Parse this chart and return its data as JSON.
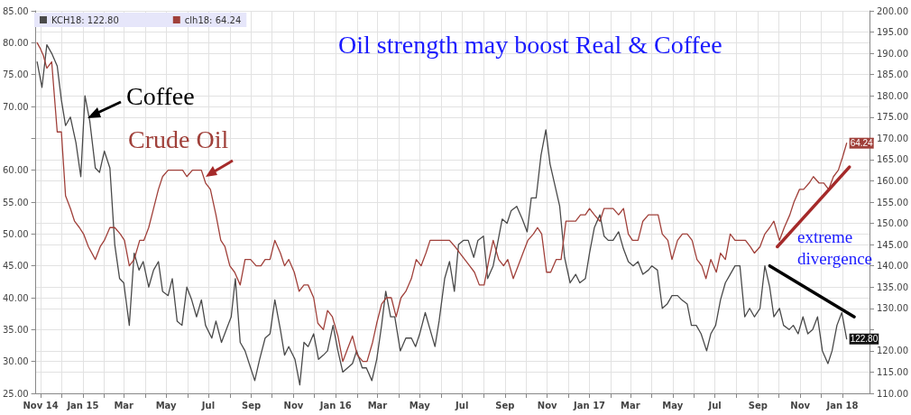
{
  "chart_data": {
    "type": "line",
    "title": "Oil strength may boost Real & Coffee",
    "annotations": [
      "Coffee",
      "Crude Oil",
      "extreme divergence"
    ],
    "xlim": [
      "2014-10-25",
      "2018-02-09"
    ],
    "xticks": [
      {
        "value": "2014-11-01",
        "label": "Nov 14"
      },
      {
        "value": "2014-12-01",
        "label": null
      },
      {
        "value": "2015-01-01",
        "label": "Jan 15"
      },
      {
        "value": "2015-02-01",
        "label": null
      },
      {
        "value": "2015-03-01",
        "label": "Mar"
      },
      {
        "value": "2015-04-01",
        "label": null
      },
      {
        "value": "2015-05-01",
        "label": "May"
      },
      {
        "value": "2015-06-01",
        "label": null
      },
      {
        "value": "2015-07-01",
        "label": "Jul"
      },
      {
        "value": "2015-08-01",
        "label": null
      },
      {
        "value": "2015-09-01",
        "label": "Sep"
      },
      {
        "value": "2015-10-01",
        "label": null
      },
      {
        "value": "2015-11-01",
        "label": "Nov"
      },
      {
        "value": "2015-12-01",
        "label": null
      },
      {
        "value": "2016-01-01",
        "label": "Jan 16"
      },
      {
        "value": "2016-02-01",
        "label": null
      },
      {
        "value": "2016-03-01",
        "label": "Mar"
      },
      {
        "value": "2016-04-01",
        "label": null
      },
      {
        "value": "2016-05-01",
        "label": "May"
      },
      {
        "value": "2016-06-01",
        "label": null
      },
      {
        "value": "2016-07-01",
        "label": "Jul"
      },
      {
        "value": "2016-08-01",
        "label": null
      },
      {
        "value": "2016-09-01",
        "label": "Sep"
      },
      {
        "value": "2016-10-01",
        "label": null
      },
      {
        "value": "2016-11-01",
        "label": "Nov"
      },
      {
        "value": "2016-12-01",
        "label": null
      },
      {
        "value": "2017-01-01",
        "label": "Jan 17"
      },
      {
        "value": "2017-02-01",
        "label": null
      },
      {
        "value": "2017-03-01",
        "label": "Mar"
      },
      {
        "value": "2017-04-01",
        "label": null
      },
      {
        "value": "2017-05-01",
        "label": "May"
      },
      {
        "value": "2017-06-01",
        "label": null
      },
      {
        "value": "2017-07-01",
        "label": "Jul"
      },
      {
        "value": "2017-08-01",
        "label": null
      },
      {
        "value": "2017-09-01",
        "label": "Sep"
      },
      {
        "value": "2017-10-01",
        "label": null
      },
      {
        "value": "2017-11-01",
        "label": "Nov"
      },
      {
        "value": "2017-12-01",
        "label": null
      },
      {
        "value": "2018-01-01",
        "label": "Jan 18"
      }
    ],
    "ylim": [
      25,
      85
    ],
    "yticks": [
      {
        "value": 25,
        "label": "25.00"
      },
      {
        "value": 30,
        "label": "30.00"
      },
      {
        "value": 35,
        "label": "35.00"
      },
      {
        "value": 40,
        "label": "40.00"
      },
      {
        "value": 45,
        "label": "45.00"
      },
      {
        "value": 50,
        "label": "50.00"
      },
      {
        "value": 55,
        "label": "55.00"
      },
      {
        "value": 60,
        "label": "60.00"
      },
      {
        "value": 65,
        "label": null
      },
      {
        "value": 70,
        "label": "70.00"
      },
      {
        "value": 75,
        "label": "75.00"
      },
      {
        "value": 80,
        "label": "80.00"
      },
      {
        "value": 85,
        "label": "85.00"
      }
    ],
    "y2lim": [
      110,
      200
    ],
    "y2ticks": [
      {
        "value": 110,
        "label": "110.00"
      },
      {
        "value": 115,
        "label": "115.00"
      },
      {
        "value": 120,
        "label": "120.00"
      },
      {
        "value": 125,
        "label": null
      },
      {
        "value": 130,
        "label": "130.00"
      },
      {
        "value": 135,
        "label": "135.00"
      },
      {
        "value": 140,
        "label": "140.00"
      },
      {
        "value": 145,
        "label": "145.00"
      },
      {
        "value": 150,
        "label": "150.00"
      },
      {
        "value": 155,
        "label": "155.00"
      },
      {
        "value": 160,
        "label": "160.00"
      },
      {
        "value": 165,
        "label": "165.00"
      },
      {
        "value": 170,
        "label": "170.00"
      },
      {
        "value": 175,
        "label": "175.00"
      },
      {
        "value": 180,
        "label": "180.00"
      },
      {
        "value": 185,
        "label": "185.00"
      },
      {
        "value": 190,
        "label": "190.00"
      },
      {
        "value": 195,
        "label": "195.00"
      },
      {
        "value": 200,
        "label": "200.00"
      }
    ],
    "grid": true,
    "legend": "top left",
    "marker": "none",
    "line_style": "solid",
    "series": [
      {
        "name": "KCH18: 122.80",
        "color": "#4a4a4a",
        "axis": "y2",
        "x": [
          "2014-10-27",
          "2014-11-03",
          "2014-11-10",
          "2014-11-17",
          "2014-11-25",
          "2014-12-01",
          "2014-12-07",
          "2014-12-14",
          "2014-12-22",
          "2014-12-29",
          "2015-01-04",
          "2015-01-11",
          "2015-01-19",
          "2015-01-25",
          "2015-02-01",
          "2015-02-09",
          "2015-02-16",
          "2015-02-23",
          "2015-03-01",
          "2015-03-09",
          "2015-03-16",
          "2015-03-23",
          "2015-03-29",
          "2015-04-06",
          "2015-04-13",
          "2015-04-20",
          "2015-04-26",
          "2015-05-04",
          "2015-05-10",
          "2015-05-17",
          "2015-05-24",
          "2015-05-31",
          "2015-06-07",
          "2015-06-14",
          "2015-06-21",
          "2015-06-27",
          "2015-07-06",
          "2015-07-12",
          "2015-07-20",
          "2015-07-27",
          "2015-08-03",
          "2015-08-09",
          "2015-08-16",
          "2015-08-23",
          "2015-08-31",
          "2015-09-06",
          "2015-09-13",
          "2015-09-21",
          "2015-09-28",
          "2015-10-05",
          "2015-10-13",
          "2015-10-19",
          "2015-10-25",
          "2015-11-03",
          "2015-11-10",
          "2015-11-16",
          "2015-11-22",
          "2015-11-30",
          "2015-12-07",
          "2015-12-14",
          "2015-12-20",
          "2015-12-28",
          "2016-01-04",
          "2016-01-11",
          "2016-01-18",
          "2016-01-25",
          "2016-01-31",
          "2016-02-08",
          "2016-02-14",
          "2016-02-22",
          "2016-02-29",
          "2016-03-07",
          "2016-03-13",
          "2016-03-20",
          "2016-03-26",
          "2016-04-03",
          "2016-04-11",
          "2016-04-19",
          "2016-04-25",
          "2016-05-01",
          "2016-05-09",
          "2016-05-16",
          "2016-05-23",
          "2016-05-29",
          "2016-06-06",
          "2016-06-13",
          "2016-06-20",
          "2016-06-26",
          "2016-07-03",
          "2016-07-10",
          "2016-07-18",
          "2016-07-24",
          "2016-08-01",
          "2016-08-07",
          "2016-08-15",
          "2016-08-21",
          "2016-08-28",
          "2016-09-04",
          "2016-09-10",
          "2016-09-18",
          "2016-09-26",
          "2016-10-03",
          "2016-10-09",
          "2016-10-16",
          "2016-10-23",
          "2016-10-30",
          "2016-11-05",
          "2016-11-12",
          "2016-11-19",
          "2016-11-26",
          "2016-12-04",
          "2016-12-12",
          "2016-12-18",
          "2016-12-26",
          "2017-01-01",
          "2017-01-08",
          "2017-01-16",
          "2017-01-22",
          "2017-01-28",
          "2017-02-04",
          "2017-02-12",
          "2017-02-19",
          "2017-02-26",
          "2017-03-05",
          "2017-03-12",
          "2017-03-19",
          "2017-03-27",
          "2017-04-01",
          "2017-04-09",
          "2017-04-16",
          "2017-04-23",
          "2017-04-30",
          "2017-05-08",
          "2017-05-14",
          "2017-05-22",
          "2017-05-28",
          "2017-06-04",
          "2017-06-11",
          "2017-06-19",
          "2017-06-25",
          "2017-07-02",
          "2017-07-09",
          "2017-07-16",
          "2017-07-23",
          "2017-07-30",
          "2017-08-06",
          "2017-08-13",
          "2017-08-20",
          "2017-08-27",
          "2017-09-04",
          "2017-09-11",
          "2017-09-18",
          "2017-09-24",
          "2017-10-02",
          "2017-10-08",
          "2017-10-16",
          "2017-10-22",
          "2017-10-29",
          "2017-11-05",
          "2017-11-12",
          "2017-11-19",
          "2017-11-26",
          "2017-12-03",
          "2017-12-11",
          "2017-12-17",
          "2017-12-24",
          "2017-12-31",
          "2018-01-07"
        ],
        "values": [
          188,
          182,
          192,
          190,
          187,
          179,
          173,
          175,
          169,
          161,
          180,
          174,
          163,
          162,
          167,
          163,
          145,
          137,
          136,
          126,
          143,
          139,
          141,
          135,
          139,
          141,
          134,
          133,
          137,
          127,
          126,
          135,
          132,
          128,
          132,
          126,
          123,
          127,
          122,
          125,
          128,
          137,
          122,
          120,
          116,
          113,
          118,
          123,
          124,
          132,
          125,
          119,
          121,
          118,
          112,
          122,
          121,
          124,
          118,
          119,
          120,
          126,
          120,
          115,
          116,
          117,
          120,
          116,
          116,
          113,
          118,
          126,
          134,
          128,
          128,
          120,
          123,
          123,
          121,
          124,
          129,
          125,
          121,
          127,
          137,
          141,
          134,
          145,
          146,
          146,
          142,
          146,
          147,
          137,
          140,
          145,
          151,
          150,
          153,
          154,
          151,
          148,
          156,
          156,
          166,
          172,
          164,
          159,
          154,
          142,
          136,
          138,
          136,
          137,
          143,
          149,
          152,
          147,
          146,
          146,
          148,
          144,
          141,
          140,
          141,
          138,
          139,
          140,
          139,
          130,
          131,
          133,
          133,
          132,
          131,
          126,
          126,
          124,
          120,
          124,
          126,
          132,
          136,
          138,
          140,
          140,
          128,
          130,
          128,
          130,
          140,
          135,
          128,
          130,
          126,
          125,
          126,
          124,
          128,
          124,
          125,
          128,
          120,
          117,
          120,
          126,
          129,
          122.8
        ],
        "value_labels": [
          null,
          null,
          null,
          null,
          null,
          null,
          null,
          null,
          null,
          null,
          null,
          null,
          null,
          null,
          null,
          null,
          null,
          null,
          null,
          null,
          null,
          null,
          null,
          null,
          null,
          null,
          null,
          null,
          null,
          null,
          null,
          null,
          null,
          null,
          null,
          null,
          null,
          null,
          null,
          null,
          null,
          null,
          null,
          null,
          null,
          null,
          null,
          null,
          null,
          null,
          null,
          null,
          null,
          null,
          null,
          null,
          null,
          null,
          null,
          null,
          null,
          null,
          null,
          null,
          null,
          null,
          null,
          null,
          null,
          null,
          null,
          null,
          null,
          null,
          null,
          null,
          null,
          null,
          null,
          null,
          null,
          null,
          null,
          null,
          null,
          null,
          null,
          null,
          null,
          null,
          null,
          null,
          null,
          null,
          null,
          null,
          null,
          null,
          null,
          null,
          null,
          null,
          null,
          null,
          null,
          null,
          null,
          null,
          null,
          null,
          null,
          null,
          null,
          null,
          null,
          null,
          null,
          null,
          null,
          null,
          null,
          null,
          null,
          null,
          null,
          null,
          null,
          null,
          null,
          null,
          null,
          null,
          null,
          null,
          null,
          null,
          null,
          null,
          null,
          null,
          null,
          null,
          null,
          null,
          null,
          null,
          null,
          null,
          null,
          null,
          null,
          null,
          null,
          null,
          null,
          null,
          null,
          null,
          null,
          null,
          null,
          null,
          null,
          null,
          null,
          null,
          null,
          "122.80"
        ]
      },
      {
        "name": "clh18: 64.24",
        "color": "#a0403a",
        "axis": "y",
        "x": [
          "2014-10-27",
          "2014-11-01",
          "2014-11-05",
          "2014-11-10",
          "2014-11-17",
          "2014-11-25",
          "2014-12-01",
          "2014-12-07",
          "2014-12-14",
          "2014-12-20",
          "2014-12-27",
          "2015-01-02",
          "2015-01-09",
          "2015-01-19",
          "2015-01-26",
          "2015-02-01",
          "2015-02-09",
          "2015-02-16",
          "2015-02-24",
          "2015-03-02",
          "2015-03-09",
          "2015-03-16",
          "2015-03-24",
          "2015-03-30",
          "2015-04-06",
          "2015-04-13",
          "2015-04-20",
          "2015-04-26",
          "2015-05-04",
          "2015-05-10",
          "2015-05-17",
          "2015-05-25",
          "2015-05-31",
          "2015-06-08",
          "2015-06-14",
          "2015-06-21",
          "2015-06-27",
          "2015-07-04",
          "2015-07-12",
          "2015-07-19",
          "2015-07-25",
          "2015-08-01",
          "2015-08-08",
          "2015-08-16",
          "2015-08-23",
          "2015-08-31",
          "2015-09-08",
          "2015-09-15",
          "2015-09-21",
          "2015-09-28",
          "2015-10-05",
          "2015-10-13",
          "2015-10-19",
          "2015-10-25",
          "2015-11-02",
          "2015-11-09",
          "2015-11-16",
          "2015-11-22",
          "2015-11-30",
          "2015-12-06",
          "2015-12-14",
          "2015-12-20",
          "2015-12-27",
          "2016-01-04",
          "2016-01-11",
          "2016-01-18",
          "2016-01-25",
          "2016-02-01",
          "2016-02-09",
          "2016-02-15",
          "2016-02-23",
          "2016-02-29",
          "2016-03-07",
          "2016-03-14",
          "2016-03-21",
          "2016-03-28",
          "2016-04-04",
          "2016-04-11",
          "2016-04-19",
          "2016-04-26",
          "2016-05-03",
          "2016-05-10",
          "2016-05-16",
          "2016-05-24",
          "2016-05-31",
          "2016-06-07",
          "2016-06-13",
          "2016-06-21",
          "2016-06-28",
          "2016-07-05",
          "2016-07-12",
          "2016-07-19",
          "2016-07-26",
          "2016-08-02",
          "2016-08-09",
          "2016-08-15",
          "2016-08-23",
          "2016-08-30",
          "2016-09-05",
          "2016-09-13",
          "2016-09-20",
          "2016-09-27",
          "2016-10-04",
          "2016-10-12",
          "2016-10-18",
          "2016-10-24",
          "2016-10-31",
          "2016-11-06",
          "2016-11-14",
          "2016-11-21",
          "2016-11-28",
          "2016-12-05",
          "2016-12-12",
          "2016-12-19",
          "2016-12-26",
          "2017-01-01",
          "2017-01-08",
          "2017-01-16",
          "2017-01-22",
          "2017-01-28",
          "2017-02-04",
          "2017-02-12",
          "2017-02-19",
          "2017-02-26",
          "2017-03-04",
          "2017-03-12",
          "2017-03-19",
          "2017-03-27",
          "2017-04-03",
          "2017-04-10",
          "2017-04-16",
          "2017-04-24",
          "2017-04-30",
          "2017-05-08",
          "2017-05-15",
          "2017-05-22",
          "2017-05-29",
          "2017-06-05",
          "2017-06-12",
          "2017-06-18",
          "2017-06-25",
          "2017-07-03",
          "2017-07-09",
          "2017-07-16",
          "2017-07-23",
          "2017-07-30",
          "2017-08-07",
          "2017-08-14",
          "2017-08-21",
          "2017-08-27",
          "2017-09-04",
          "2017-09-11",
          "2017-09-18",
          "2017-09-24",
          "2017-10-02",
          "2017-10-09",
          "2017-10-17",
          "2017-10-23",
          "2017-10-31",
          "2017-11-06",
          "2017-11-14",
          "2017-11-20",
          "2017-11-28",
          "2017-12-05",
          "2017-12-12",
          "2017-12-19",
          "2017-12-26",
          "2018-01-01",
          "2018-01-07"
        ],
        "values": [
          80,
          79,
          78,
          76,
          77,
          66,
          66,
          56,
          54,
          52,
          51,
          50,
          48,
          46,
          48,
          49,
          51,
          51,
          50,
          49,
          45,
          46,
          49,
          49,
          51,
          54,
          57,
          59,
          60,
          60,
          60,
          60,
          59,
          60,
          60,
          60,
          58,
          57,
          53,
          49,
          48,
          45,
          44,
          42,
          46,
          46,
          45,
          45,
          46,
          46,
          49,
          47,
          45,
          46,
          44,
          41,
          42,
          42,
          40,
          36,
          35,
          38,
          37,
          34,
          30,
          32,
          34,
          31,
          30,
          30,
          33,
          36,
          39,
          40,
          40,
          37,
          40,
          41,
          43,
          46,
          45,
          47,
          49,
          49,
          49,
          49,
          49,
          48,
          47,
          46,
          45,
          44,
          42,
          42,
          46,
          49,
          46,
          45,
          46,
          43,
          45,
          47,
          49,
          50,
          51,
          50,
          44,
          44,
          46,
          46,
          52,
          52,
          52,
          53,
          53,
          54,
          53,
          52,
          54,
          54,
          54,
          53,
          54,
          50,
          49,
          49,
          52,
          53,
          53,
          53,
          50,
          49,
          46,
          49,
          50,
          50,
          49,
          46,
          45,
          43,
          46,
          44,
          47,
          46,
          50,
          49,
          49,
          49,
          48,
          47,
          48,
          50,
          51,
          52,
          49,
          51,
          53,
          55,
          57,
          57,
          58,
          59,
          58,
          58,
          57,
          59,
          60,
          62,
          64.24
        ],
        "value_labels": [
          null,
          null,
          null,
          null,
          null,
          null,
          null,
          null,
          null,
          null,
          null,
          null,
          null,
          null,
          null,
          null,
          null,
          null,
          null,
          null,
          null,
          null,
          null,
          null,
          null,
          null,
          null,
          null,
          null,
          null,
          null,
          null,
          null,
          null,
          null,
          null,
          null,
          null,
          null,
          null,
          null,
          null,
          null,
          null,
          null,
          null,
          null,
          null,
          null,
          null,
          null,
          null,
          null,
          null,
          null,
          null,
          null,
          null,
          null,
          null,
          null,
          null,
          null,
          null,
          null,
          null,
          null,
          null,
          null,
          null,
          null,
          null,
          null,
          null,
          null,
          null,
          null,
          null,
          null,
          null,
          null,
          null,
          null,
          null,
          null,
          null,
          null,
          null,
          null,
          null,
          null,
          null,
          null,
          null,
          null,
          null,
          null,
          null,
          null,
          null,
          null,
          null,
          null,
          null,
          null,
          null,
          null,
          null,
          null,
          null,
          null,
          null,
          null,
          null,
          null,
          null,
          null,
          null,
          null,
          null,
          null,
          null,
          null,
          null,
          null,
          null,
          null,
          null,
          null,
          null,
          null,
          null,
          null,
          null,
          null,
          null,
          null,
          null,
          null,
          null,
          null,
          null,
          null,
          null,
          null,
          null,
          null,
          null,
          null,
          null,
          null,
          null,
          null,
          null,
          null,
          null,
          null,
          null,
          null,
          null,
          null,
          null,
          null,
          null,
          null,
          null,
          null,
          null,
          "64.24"
        ]
      },
      {
        "type": "line",
        "color": "#a52a2a",
        "axis": "y",
        "x": [
          "2017-09-29",
          "2018-01-11"
        ],
        "values": [
          48,
          60.5
        ]
      },
      {
        "type": "line",
        "color": "#000000",
        "axis": "y2",
        "x": [
          "2017-09-18",
          "2018-01-18"
        ],
        "values": [
          140,
          128
        ]
      }
    ]
  }
}
